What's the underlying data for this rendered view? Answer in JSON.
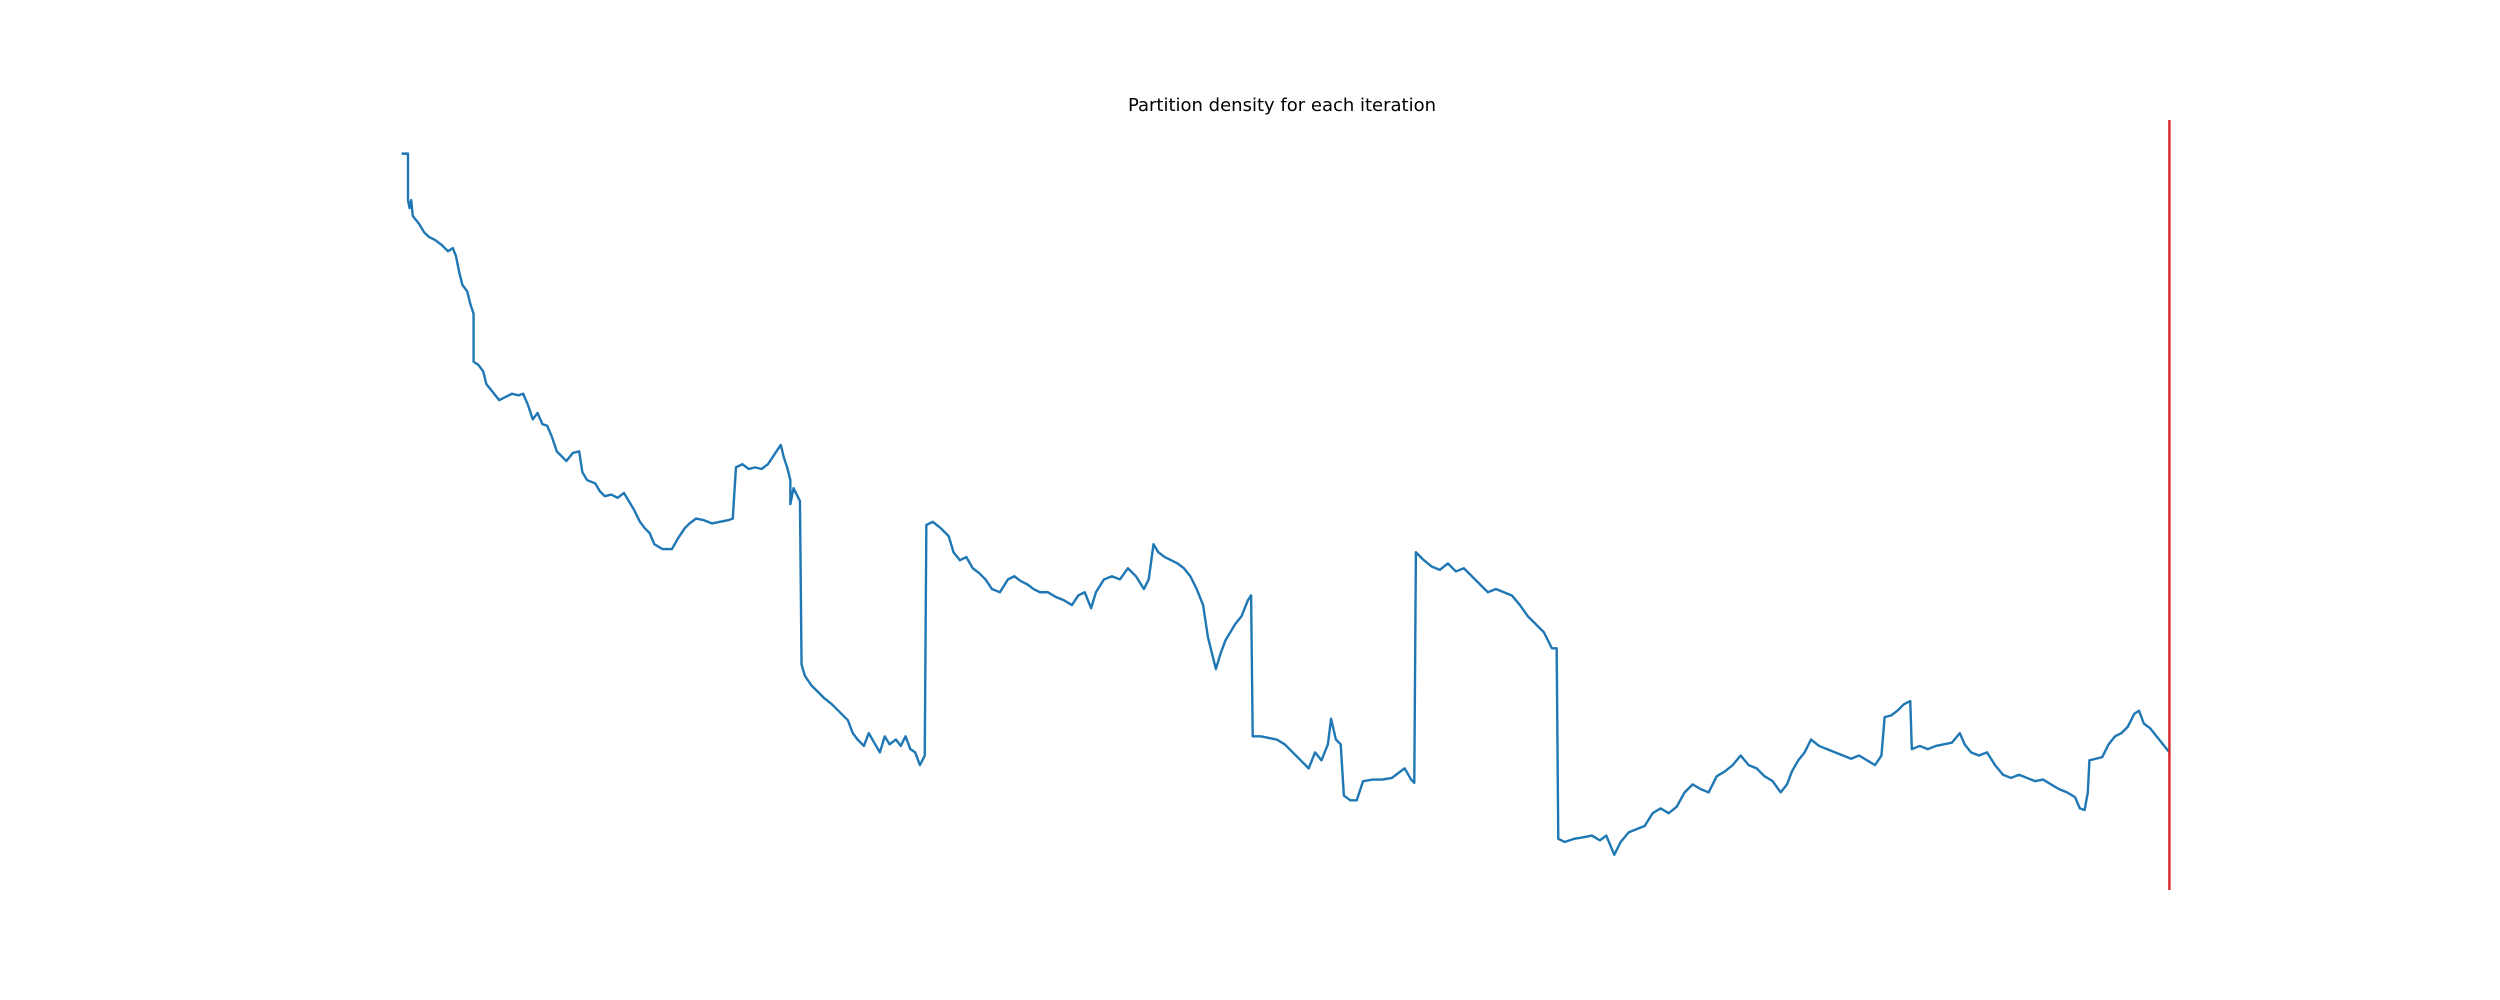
{
  "chart_data": {
    "type": "line",
    "title": "Partition density for each iteration",
    "x": [
      0,
      4,
      4,
      5,
      6,
      7,
      11,
      14,
      17,
      21,
      25,
      29,
      32,
      34,
      36,
      38,
      41,
      43,
      45,
      45,
      48,
      51,
      53,
      57,
      61,
      65,
      69,
      73,
      76,
      79,
      82,
      85,
      88,
      91,
      94,
      97,
      100,
      103,
      107,
      111,
      113,
      116,
      121,
      124,
      127,
      131,
      135,
      139,
      142,
      145,
      149,
      152,
      155,
      158,
      163,
      169,
      173,
      177,
      180,
      184,
      189,
      194,
      199,
      204,
      207,
      209,
      213,
      217,
      221,
      225,
      229,
      233,
      237,
      239,
      241,
      243,
      243,
      245,
      249,
      250,
      252,
      256,
      260,
      264,
      269,
      274,
      279,
      282,
      285,
      289,
      292,
      296,
      299,
      302,
      305,
      309,
      312,
      315,
      318,
      321,
      324,
      327,
      328,
      332,
      337,
      342,
      345,
      349,
      353,
      357,
      361,
      365,
      369,
      374,
      379,
      383,
      387,
      391,
      395,
      399,
      404,
      409,
      414,
      419,
      423,
      427,
      431,
      434,
      439,
      444,
      449,
      454,
      459,
      464,
      467,
      470,
      473,
      477,
      481,
      485,
      489,
      493,
      497,
      501,
      504,
      507,
      509,
      512,
      515,
      518,
      521,
      525,
      529,
      531,
      532,
      537,
      542,
      547,
      552,
      557,
      562,
      567,
      571,
      575,
      579,
      581,
      584,
      587,
      589,
      593,
      597,
      601,
      607,
      613,
      619,
      623,
      627,
      631,
      633,
      634,
      639,
      644,
      649,
      654,
      659,
      664,
      669,
      674,
      679,
      684,
      689,
      694,
      699,
      704,
      709,
      714,
      719,
      722,
      723,
      727,
      733,
      739,
      744,
      749,
      753,
      758,
      762,
      767,
      772,
      777,
      782,
      787,
      792,
      797,
      802,
      807,
      812,
      817,
      822,
      827,
      832,
      837,
      842,
      847,
      852,
      857,
      862,
      866,
      869,
      873,
      877,
      881,
      886,
      891,
      896,
      901,
      906,
      911,
      916,
      921,
      925,
      927,
      931,
      935,
      939,
      943,
      944,
      949,
      954,
      959,
      964,
      969,
      974,
      977,
      981,
      986,
      991,
      996,
      1001,
      1006,
      1011,
      1016,
      1021,
      1026,
      1031,
      1036,
      1041,
      1046,
      1049,
      1052,
      1054,
      1055,
      1059,
      1063,
      1067,
      1071,
      1075,
      1079,
      1083,
      1086,
      1089,
      1093,
      1097,
      1101,
      1105
    ],
    "series": [
      {
        "color": "#1f77b4",
        "values": [
          460,
          460,
          431,
          426,
          431,
          421,
          416,
          411,
          408,
          406,
          403,
          399,
          401,
          396,
          386,
          378,
          374,
          366,
          360,
          330,
          328,
          324,
          316,
          311,
          306,
          308,
          310,
          309,
          310,
          303,
          294,
          298,
          291,
          290,
          283,
          274,
          271,
          268,
          273,
          274,
          261,
          256,
          254,
          249,
          246,
          247,
          245,
          248,
          243,
          238,
          230,
          226,
          223,
          216,
          213,
          213,
          220,
          226,
          229,
          232,
          231,
          229,
          230,
          231,
          232,
          264,
          266,
          263,
          264,
          263,
          266,
          272,
          278,
          270,
          264,
          256,
          241,
          251,
          243,
          141,
          134,
          128,
          124,
          120,
          116,
          111,
          106,
          98,
          94,
          90,
          98,
          91,
          86,
          96,
          91,
          94,
          90,
          96,
          88,
          86,
          78,
          84,
          228,
          230,
          226,
          221,
          211,
          206,
          208,
          201,
          198,
          194,
          188,
          186,
          194,
          196,
          193,
          191,
          188,
          186,
          186,
          183,
          181,
          178,
          184,
          186,
          176,
          186,
          194,
          196,
          194,
          201,
          196,
          188,
          194,
          216,
          211,
          208,
          206,
          204,
          201,
          196,
          188,
          178,
          158,
          146,
          138,
          148,
          156,
          161,
          166,
          171,
          181,
          184,
          96,
          96,
          95,
          94,
          91,
          86,
          81,
          76,
          86,
          81,
          91,
          107,
          94,
          91,
          59,
          56,
          56,
          68,
          69,
          69,
          70,
          73,
          76,
          69,
          67,
          211,
          206,
          202,
          200,
          204,
          199,
          201,
          196,
          191,
          186,
          188,
          186,
          184,
          178,
          171,
          166,
          161,
          151,
          151,
          32,
          30,
          32,
          33,
          34,
          31,
          34,
          22,
          30,
          36,
          38,
          40,
          48,
          51,
          48,
          52,
          61,
          66,
          63,
          61,
          71,
          74,
          78,
          84,
          78,
          76,
          71,
          68,
          61,
          66,
          74,
          81,
          86,
          94,
          90,
          88,
          86,
          84,
          82,
          84,
          81,
          78,
          84,
          108,
          109,
          112,
          116,
          118,
          88,
          90,
          88,
          90,
          91,
          92,
          98,
          91,
          86,
          84,
          86,
          78,
          72,
          70,
          72,
          70,
          68,
          69,
          66,
          63,
          61,
          58,
          51,
          50,
          61,
          81,
          82,
          83,
          91,
          96,
          98,
          102,
          110,
          112,
          104,
          101,
          96,
          91,
          86
        ]
      }
    ],
    "xlim": [
      -56,
      1156
    ],
    "ylim": [
      0,
      481
    ],
    "axes_visible": false,
    "vline": {
      "x": 1105,
      "color": "#d62728"
    }
  }
}
